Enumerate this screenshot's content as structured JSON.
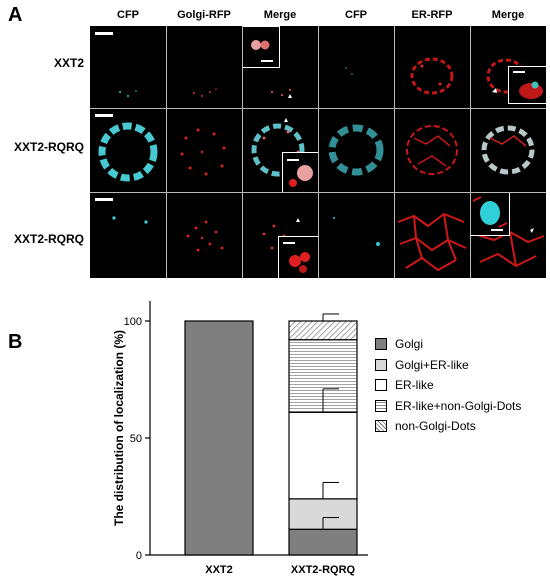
{
  "panel_a": {
    "letter": "A",
    "columns": [
      "CFP",
      "Golgi-RFP",
      "Merge",
      "CFP",
      "ER-RFP",
      "Merge"
    ],
    "rows": [
      "XXT2",
      "XXT2-RQRQ",
      "XXT2-RQRQ"
    ]
  },
  "panel_b": {
    "letter": "B"
  },
  "colors": {
    "golgi": "#7f7f7f",
    "golgi_er": "#d9d9d9",
    "er": "#ffffff",
    "er_nongolgi": "#ececec",
    "dots": "#e8e8e8"
  },
  "chart_data": {
    "type": "bar",
    "stacked": true,
    "ylabel": "The distribution of localization (%)",
    "ylim": [
      0,
      100
    ],
    "yticks": [
      0,
      50,
      100
    ],
    "categories": [
      "XXT2",
      "XXT2-RQRQ"
    ],
    "series": [
      {
        "name": "Golgi",
        "values": [
          100,
          11
        ],
        "error": [
          0,
          5
        ],
        "fill": "solid-dark"
      },
      {
        "name": "Golgi+ER-like",
        "values": [
          0,
          13
        ],
        "error": [
          0,
          7
        ],
        "fill": "solid-light"
      },
      {
        "name": "ER-like",
        "values": [
          0,
          37
        ],
        "error": [
          0,
          10
        ],
        "fill": "white"
      },
      {
        "name": "ER-like+non-Golgi-Dots",
        "values": [
          0,
          31
        ],
        "error": [
          0,
          0
        ],
        "fill": "horizontal-lines"
      },
      {
        "name": "non-Golgi-Dots",
        "values": [
          0,
          8
        ],
        "error": [
          0,
          3
        ],
        "fill": "diagonal-hatch"
      }
    ],
    "legend_position": "right"
  }
}
